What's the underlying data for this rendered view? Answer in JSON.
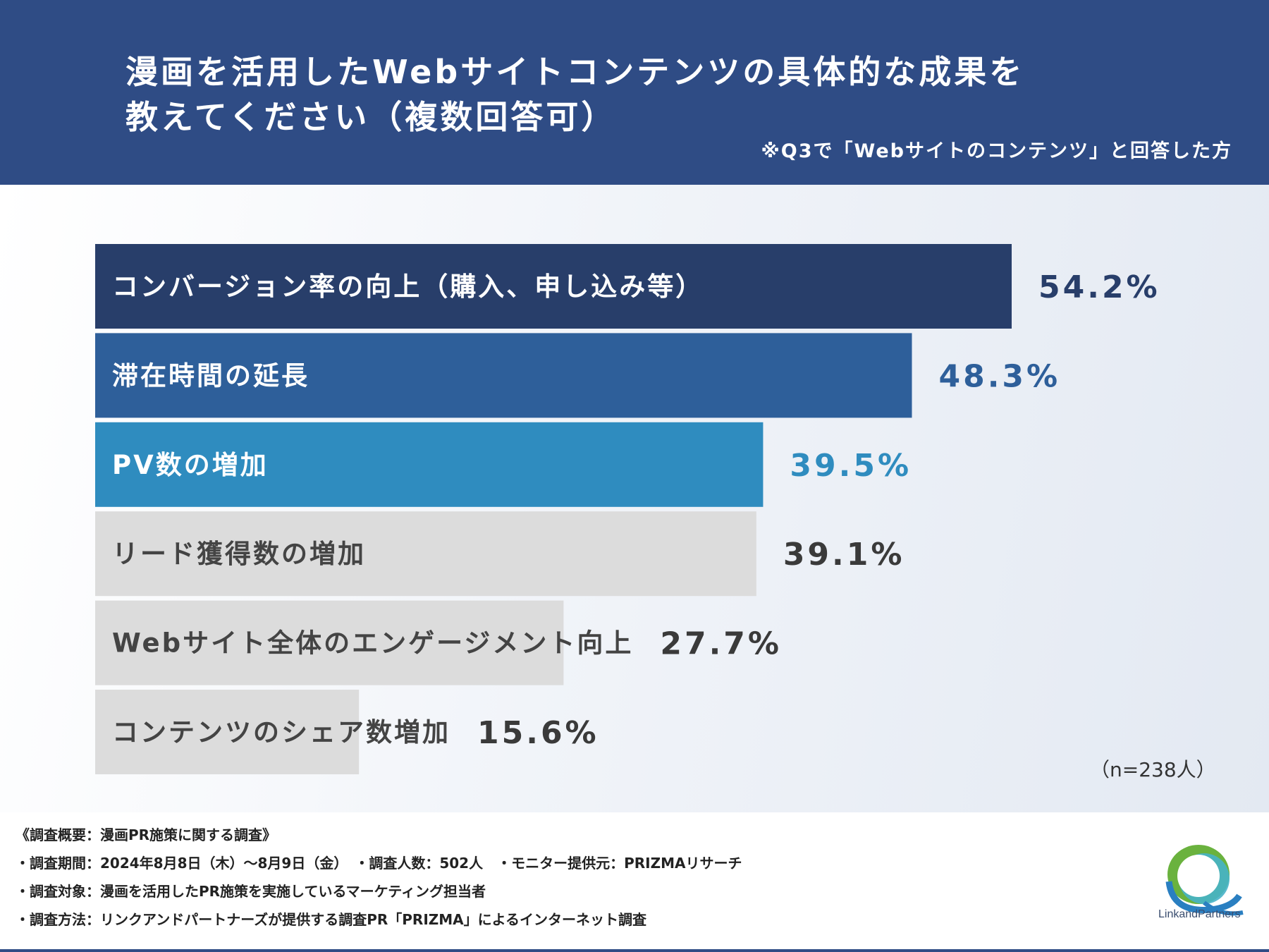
{
  "header": {
    "title": "漫画を活用したWebサイトコンテンツの具体的な成果を\n教えてください（複数回答可）",
    "note": "※Q3で「Webサイトのコンテンツ」と回答した方"
  },
  "chart_data": {
    "type": "bar",
    "orientation": "horizontal",
    "categories": [
      "コンバージョン率の向上（購入、申し込み等）",
      "滞在時間の延長",
      "PV数の増加",
      "リード獲得数の増加",
      "Webサイト全体のエンゲージメント向上",
      "コンテンツのシェア数増加"
    ],
    "values": [
      54.2,
      48.3,
      39.5,
      39.1,
      27.7,
      15.6
    ],
    "value_labels": [
      "54.2%",
      "48.3%",
      "39.5%",
      "39.1%",
      "27.7%",
      "15.6%"
    ],
    "unit": "%",
    "colors": [
      "#283e6a",
      "#2e5f9a",
      "#2f8cbf",
      "#dcdcdc",
      "#dcdcdc",
      "#dcdcdc"
    ],
    "label_colors": [
      "#ffffff",
      "#ffffff",
      "#ffffff",
      "#444444",
      "#444444",
      "#444444"
    ],
    "value_colors": [
      "#283e6a",
      "#2e5f9a",
      "#2f8cbf",
      "#3a3a3a",
      "#3a3a3a",
      "#3a3a3a"
    ],
    "xlim": [
      0,
      54.2
    ],
    "grid": false,
    "n": "（n=238人）"
  },
  "footer": {
    "lines": [
      "《調査概要：漫画PR施策に関する調査》",
      "・調査期間：2024年8月8日（木）～8月9日（金）　・調査人数：502人　・モニター提供元：PRIZMAリサーチ",
      "・調査対象：漫画を活用したPR施策を実施しているマーケティング担当者",
      "・調査方法：リンクアンドパートナーズが提供する調査PR「PRIZMA」によるインターネット調査"
    ]
  },
  "logo": {
    "text": "LinkandPartners",
    "icon": "link-and-partners-logo-icon",
    "colors": {
      "green": "#6ab23e",
      "blue": "#2a7fc1",
      "teal": "#47b3c8"
    }
  }
}
